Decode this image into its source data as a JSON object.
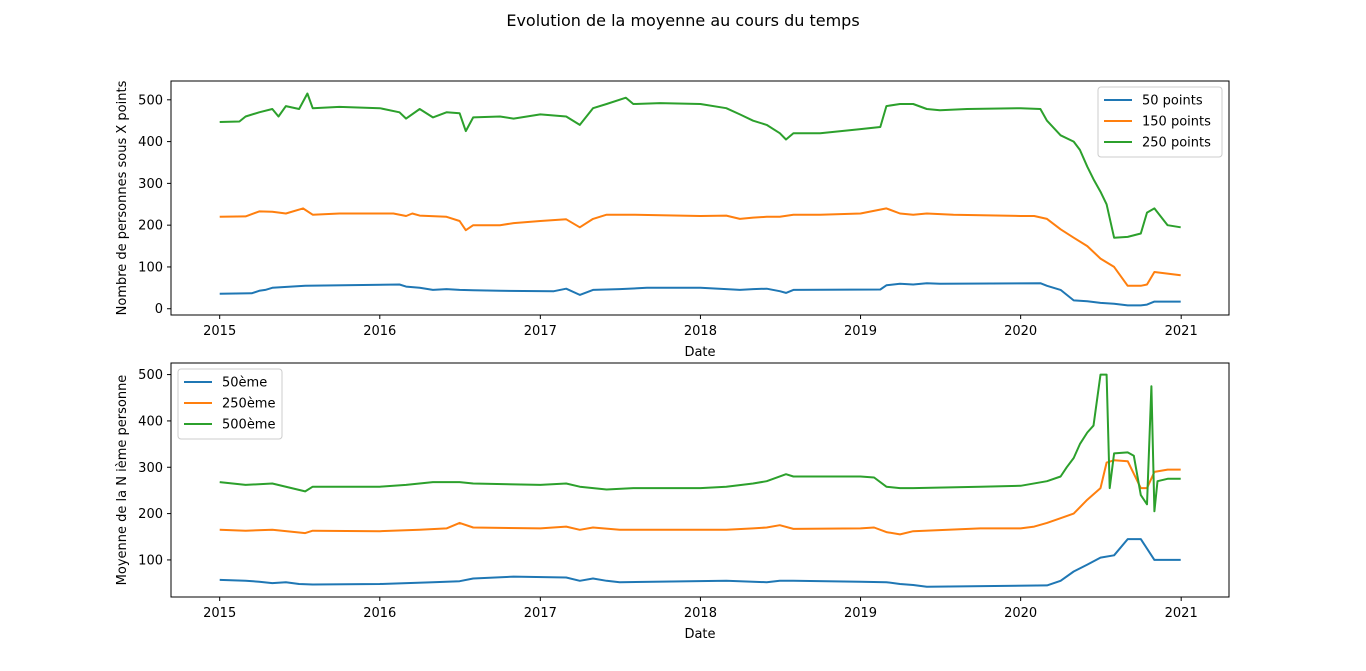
{
  "figure": {
    "suptitle": "Evolution de la moyenne au cours du temps"
  },
  "chart_data": [
    {
      "type": "line",
      "xlabel": "Date",
      "ylabel": "Nombre de personnes sous X points",
      "xlim": [
        "2014-09-12",
        "2021-04-20"
      ],
      "ylim": [
        -15,
        545
      ],
      "xticks": [
        "2015",
        "2016",
        "2017",
        "2018",
        "2019",
        "2020",
        "2021"
      ],
      "yticks": [
        0,
        100,
        200,
        300,
        400,
        500
      ],
      "legend": "upper right",
      "series": [
        {
          "name": "50 points",
          "color": "#1f77b4",
          "x": [
            "2015-01-01",
            "2015-03-15",
            "2015-04-01",
            "2015-04-15",
            "2015-05-01",
            "2015-07-15",
            "2016-02-15",
            "2016-03-01",
            "2016-04-01",
            "2016-05-01",
            "2016-06-01",
            "2016-07-01",
            "2016-08-01",
            "2016-10-01",
            "2017-02-01",
            "2017-03-01",
            "2017-04-01",
            "2017-05-01",
            "2017-07-01",
            "2017-09-01",
            "2018-01-01",
            "2018-03-01",
            "2018-04-01",
            "2018-05-01",
            "2018-06-01",
            "2018-07-01",
            "2018-07-15",
            "2018-08-01",
            "2019-02-15",
            "2019-03-01",
            "2019-04-01",
            "2019-05-01",
            "2019-06-01",
            "2019-07-01",
            "2020-02-15",
            "2020-03-01",
            "2020-04-01",
            "2020-05-01",
            "2020-06-01",
            "2020-07-01",
            "2020-08-01",
            "2020-09-01",
            "2020-10-01",
            "2020-10-15",
            "2020-11-01",
            "2020-12-31"
          ],
          "y": [
            36,
            37,
            43,
            45,
            50,
            55,
            58,
            53,
            50,
            45,
            47,
            45,
            44,
            43,
            42,
            48,
            33,
            45,
            47,
            50,
            50,
            47,
            45,
            47,
            48,
            42,
            38,
            45,
            46,
            56,
            60,
            58,
            61,
            60,
            61,
            55,
            45,
            20,
            18,
            14,
            12,
            8,
            8,
            10,
            17,
            17
          ]
        },
        {
          "name": "150 points",
          "color": "#ff7f0e",
          "x": [
            "2015-01-01",
            "2015-03-01",
            "2015-04-01",
            "2015-05-01",
            "2015-06-01",
            "2015-07-10",
            "2015-08-01",
            "2015-10-01",
            "2016-02-01",
            "2016-03-01",
            "2016-03-15",
            "2016-04-01",
            "2016-06-01",
            "2016-07-01",
            "2016-07-15",
            "2016-08-01",
            "2016-10-01",
            "2016-11-01",
            "2017-01-01",
            "2017-03-01",
            "2017-04-01",
            "2017-05-01",
            "2017-06-01",
            "2017-08-01",
            "2018-01-01",
            "2018-03-01",
            "2018-04-01",
            "2018-05-01",
            "2018-06-01",
            "2018-07-01",
            "2018-08-01",
            "2018-10-01",
            "2019-01-01",
            "2019-03-01",
            "2019-04-01",
            "2019-05-01",
            "2019-06-01",
            "2019-08-01",
            "2020-01-01",
            "2020-02-01",
            "2020-03-01",
            "2020-04-01",
            "2020-05-01",
            "2020-06-01",
            "2020-07-01",
            "2020-08-01",
            "2020-09-01",
            "2020-10-01",
            "2020-10-15",
            "2020-11-01",
            "2020-12-31"
          ],
          "y": [
            220,
            221,
            233,
            232,
            228,
            240,
            225,
            228,
            228,
            222,
            228,
            223,
            220,
            210,
            188,
            200,
            200,
            205,
            210,
            214,
            195,
            215,
            225,
            225,
            222,
            223,
            215,
            218,
            220,
            220,
            225,
            225,
            228,
            240,
            228,
            225,
            228,
            225,
            222,
            222,
            215,
            190,
            170,
            150,
            120,
            100,
            55,
            55,
            58,
            88,
            80
          ]
        },
        {
          "name": "250 points",
          "color": "#2ca02c",
          "x": [
            "2015-01-01",
            "2015-02-15",
            "2015-03-01",
            "2015-04-01",
            "2015-05-01",
            "2015-05-15",
            "2015-06-01",
            "2015-07-01",
            "2015-07-20",
            "2015-08-01",
            "2015-10-01",
            "2016-01-01",
            "2016-02-15",
            "2016-03-01",
            "2016-04-01",
            "2016-05-01",
            "2016-06-01",
            "2016-07-01",
            "2016-07-15",
            "2016-08-01",
            "2016-10-01",
            "2016-11-01",
            "2017-01-01",
            "2017-03-01",
            "2017-04-01",
            "2017-05-01",
            "2017-06-01",
            "2017-07-15",
            "2017-08-01",
            "2017-10-01",
            "2018-01-01",
            "2018-03-01",
            "2018-04-01",
            "2018-05-01",
            "2018-06-01",
            "2018-07-01",
            "2018-07-15",
            "2018-08-01",
            "2018-10-01",
            "2019-01-01",
            "2019-02-15",
            "2019-03-01",
            "2019-04-01",
            "2019-05-01",
            "2019-06-01",
            "2019-07-01",
            "2019-09-01",
            "2020-01-01",
            "2020-02-15",
            "2020-03-01",
            "2020-04-01",
            "2020-05-01",
            "2020-05-15",
            "2020-06-01",
            "2020-06-15",
            "2020-07-01",
            "2020-07-15",
            "2020-08-01",
            "2020-09-01",
            "2020-10-01",
            "2020-10-15",
            "2020-11-01",
            "2020-12-01",
            "2020-12-31"
          ],
          "y": [
            447,
            448,
            460,
            470,
            478,
            460,
            485,
            478,
            515,
            480,
            483,
            480,
            470,
            455,
            478,
            458,
            470,
            468,
            425,
            458,
            460,
            455,
            465,
            460,
            440,
            480,
            490,
            505,
            490,
            492,
            490,
            480,
            465,
            450,
            440,
            420,
            405,
            420,
            420,
            430,
            435,
            485,
            490,
            490,
            478,
            475,
            478,
            480,
            478,
            450,
            415,
            400,
            380,
            340,
            310,
            280,
            250,
            170,
            172,
            180,
            230,
            240,
            200,
            195
          ]
        }
      ]
    },
    {
      "type": "line",
      "xlabel": "Date",
      "ylabel": "Moyenne de la N ième personne",
      "xlim": [
        "2014-09-12",
        "2021-04-20"
      ],
      "ylim": [
        20,
        525
      ],
      "xticks": [
        "2015",
        "2016",
        "2017",
        "2018",
        "2019",
        "2020",
        "2021"
      ],
      "yticks": [
        100,
        200,
        300,
        400,
        500
      ],
      "legend": "upper left",
      "series": [
        {
          "name": "50ème",
          "color": "#1f77b4",
          "x": [
            "2015-01-01",
            "2015-03-01",
            "2015-04-01",
            "2015-05-01",
            "2015-06-01",
            "2015-07-01",
            "2015-08-01",
            "2016-01-01",
            "2016-05-01",
            "2016-07-01",
            "2016-08-01",
            "2016-11-01",
            "2017-03-01",
            "2017-04-01",
            "2017-05-01",
            "2017-06-01",
            "2017-07-01",
            "2018-03-01",
            "2018-06-01",
            "2018-07-01",
            "2018-08-01",
            "2019-01-01",
            "2019-03-01",
            "2019-04-01",
            "2019-05-01",
            "2019-06-01",
            "2020-03-01",
            "2020-04-01",
            "2020-05-01",
            "2020-06-01",
            "2020-07-01",
            "2020-08-01",
            "2020-09-01",
            "2020-10-01",
            "2020-11-01",
            "2020-12-31"
          ],
          "y": [
            57,
            55,
            53,
            50,
            52,
            48,
            47,
            48,
            52,
            54,
            60,
            64,
            62,
            55,
            60,
            55,
            52,
            55,
            52,
            55,
            55,
            53,
            52,
            48,
            46,
            42,
            45,
            55,
            75,
            90,
            105,
            110,
            145,
            145,
            100,
            100
          ]
        },
        {
          "name": "250ème",
          "color": "#ff7f0e",
          "x": [
            "2015-01-01",
            "2015-03-01",
            "2015-05-01",
            "2015-07-15",
            "2015-08-01",
            "2016-01-01",
            "2016-04-01",
            "2016-06-01",
            "2016-07-01",
            "2016-08-01",
            "2017-01-01",
            "2017-03-01",
            "2017-04-01",
            "2017-05-01",
            "2017-07-01",
            "2018-01-01",
            "2018-03-01",
            "2018-05-01",
            "2018-06-01",
            "2018-07-01",
            "2018-08-01",
            "2019-01-01",
            "2019-02-01",
            "2019-03-01",
            "2019-04-01",
            "2019-05-01",
            "2019-10-01",
            "2020-01-01",
            "2020-02-01",
            "2020-03-01",
            "2020-04-01",
            "2020-05-01",
            "2020-06-01",
            "2020-07-01",
            "2020-07-15",
            "2020-08-01",
            "2020-09-01",
            "2020-10-01",
            "2020-10-15",
            "2020-11-01",
            "2020-12-01",
            "2020-12-31"
          ],
          "y": [
            165,
            163,
            165,
            158,
            163,
            162,
            165,
            168,
            180,
            170,
            168,
            172,
            165,
            170,
            165,
            165,
            165,
            168,
            170,
            175,
            167,
            168,
            170,
            160,
            155,
            162,
            168,
            168,
            172,
            180,
            190,
            200,
            230,
            255,
            310,
            315,
            313,
            255,
            255,
            290,
            295,
            295
          ]
        },
        {
          "name": "500ème",
          "color": "#2ca02c",
          "x": [
            "2015-01-01",
            "2015-03-01",
            "2015-05-01",
            "2015-07-15",
            "2015-08-01",
            "2016-01-01",
            "2016-03-01",
            "2016-05-01",
            "2016-07-01",
            "2016-08-01",
            "2017-01-01",
            "2017-03-01",
            "2017-04-01",
            "2017-06-01",
            "2017-08-01",
            "2018-01-01",
            "2018-03-01",
            "2018-05-01",
            "2018-06-01",
            "2018-07-15",
            "2018-08-01",
            "2019-01-01",
            "2019-02-01",
            "2019-03-01",
            "2019-04-01",
            "2019-05-01",
            "2019-10-01",
            "2020-01-01",
            "2020-03-01",
            "2020-04-01",
            "2020-04-15",
            "2020-05-01",
            "2020-05-15",
            "2020-06-01",
            "2020-06-15",
            "2020-07-01",
            "2020-07-15",
            "2020-07-22",
            "2020-08-01",
            "2020-09-01",
            "2020-09-15",
            "2020-10-01",
            "2020-10-15",
            "2020-10-25",
            "2020-11-01",
            "2020-11-08",
            "2020-12-01",
            "2020-12-31"
          ],
          "y": [
            268,
            262,
            265,
            248,
            258,
            258,
            262,
            268,
            268,
            265,
            262,
            265,
            258,
            252,
            255,
            255,
            258,
            265,
            270,
            285,
            280,
            280,
            278,
            258,
            255,
            255,
            258,
            260,
            270,
            280,
            300,
            320,
            350,
            375,
            390,
            500,
            500,
            255,
            330,
            332,
            325,
            240,
            220,
            475,
            205,
            270,
            275,
            275
          ]
        }
      ]
    }
  ]
}
